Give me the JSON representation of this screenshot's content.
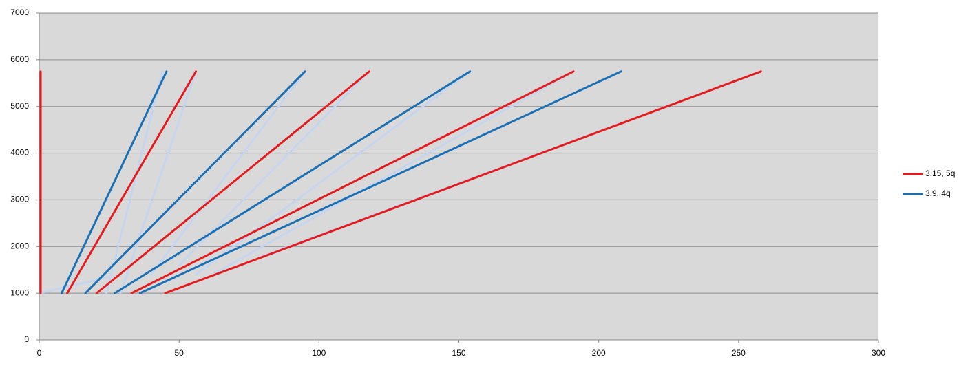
{
  "chart_data": {
    "type": "line",
    "xlim": [
      0,
      300
    ],
    "xticks": [
      0,
      50,
      100,
      150,
      200,
      250,
      300
    ],
    "ylim": [
      0,
      7000
    ],
    "yticks": [
      0,
      1000,
      2000,
      3000,
      4000,
      5000,
      6000,
      7000
    ],
    "grid": true,
    "legend": "right",
    "series": [
      {
        "color": "#c5d5ef",
        "x": [
          0,
          25,
          null,
          44,
          24,
          null,
          56,
          29,
          null,
          95,
          40,
          null,
          118,
          50,
          null,
          154,
          56,
          null,
          191,
          62,
          null,
          258,
          80
        ],
        "values": [
          1000,
          1350,
          null,
          5750,
          1000,
          null,
          5750,
          1000,
          null,
          5750,
          1400,
          null,
          5750,
          1600,
          null,
          5750,
          1400,
          null,
          5750,
          1400,
          null,
          5750,
          1800
        ]
      },
      {
        "name": "3.15, 5q",
        "color": "#e41a1c",
        "x": [
          0.5,
          0.5,
          null,
          10,
          56,
          null,
          20.5,
          118,
          null,
          33,
          191,
          null,
          45,
          258
        ],
        "values": [
          1000,
          5750,
          null,
          1000,
          5750,
          null,
          1000,
          5750,
          null,
          1000,
          5750,
          null,
          1000,
          5750
        ]
      },
      {
        "name": "3.9, 4q",
        "color": "#1a6fb5",
        "x": [
          8,
          45.5,
          null,
          16.5,
          95,
          null,
          27,
          154,
          null,
          36,
          208
        ],
        "values": [
          1000,
          5750,
          null,
          1000,
          5750,
          null,
          1000,
          5750,
          null,
          1000,
          5750
        ]
      }
    ]
  }
}
